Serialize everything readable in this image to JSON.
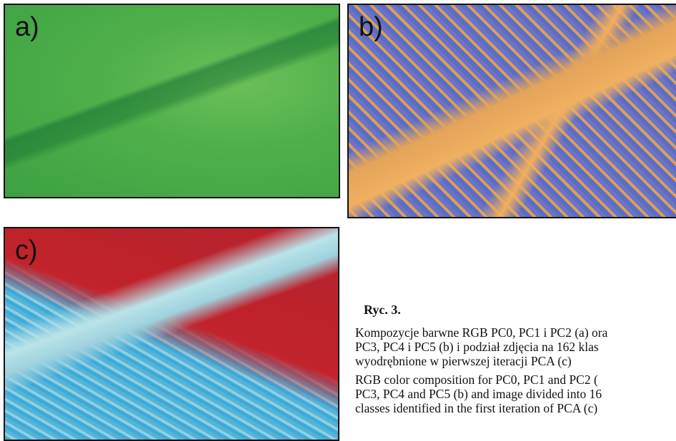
{
  "panels": [
    {
      "label": "a)"
    },
    {
      "label": "b)"
    },
    {
      "label": "c)"
    }
  ],
  "caption": {
    "title": "Ryc. 3.",
    "polish": [
      "Kompozycje barwne RGB PC0, PC1 i PC2 (a) ora",
      "PC3, PC4 i PC5 (b) i podział zdjęcia na 162 klas",
      "wyodrębnione w pierwszej iteracji PCA (c)"
    ],
    "english": [
      "RGB color composition for PC0, PC1 and PC2 (",
      "PC3, PC4 and PC5 (b) and image divided into 16",
      "classes identified in the first iteration of PCA (c)"
    ]
  }
}
